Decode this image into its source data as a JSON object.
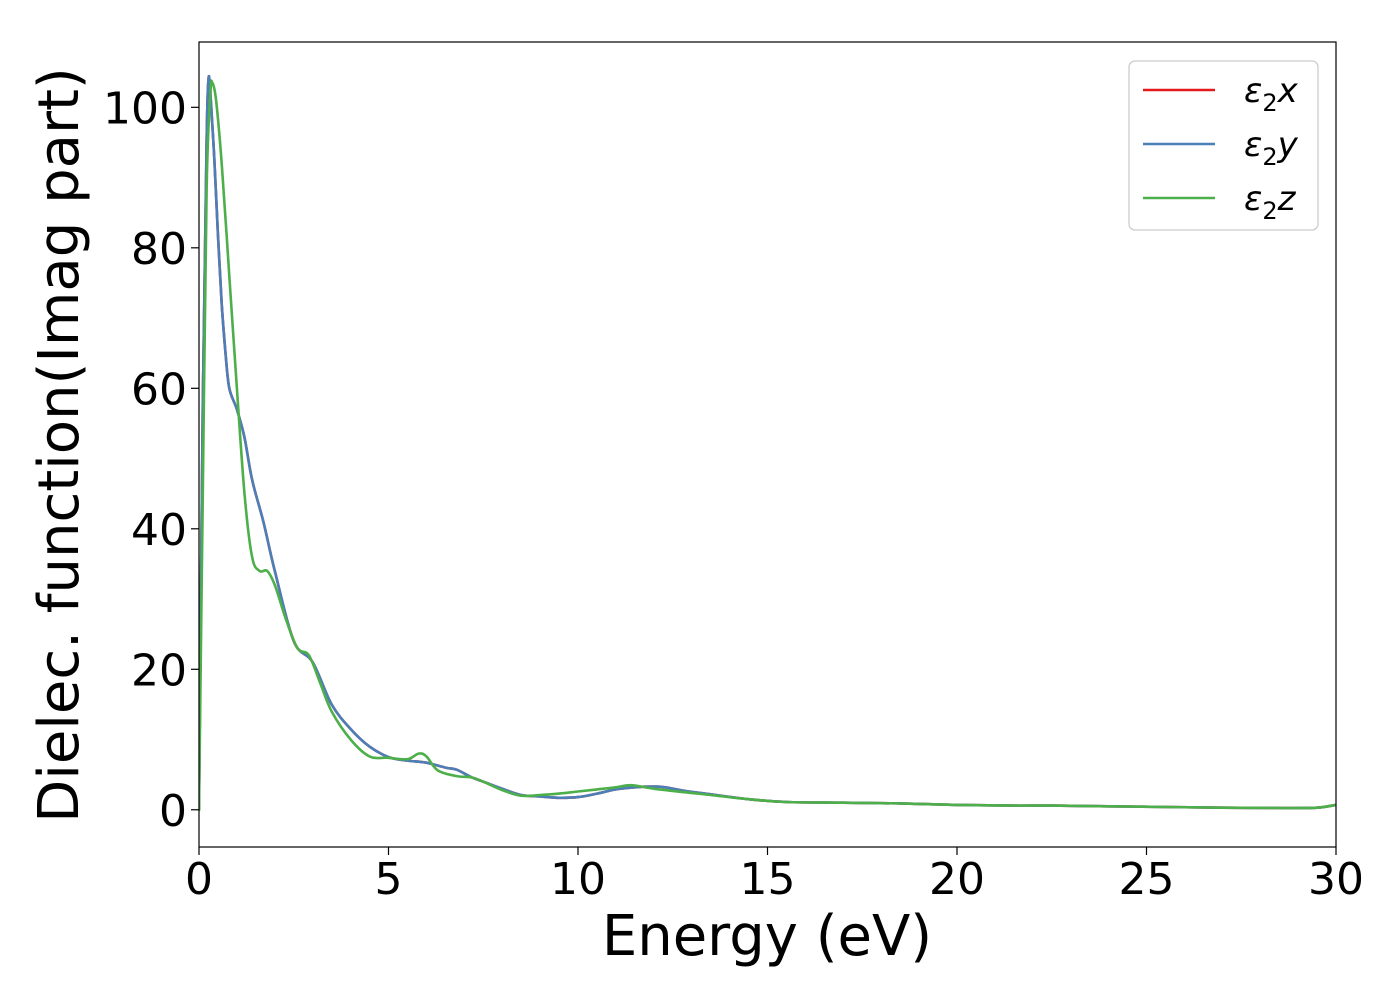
{
  "chart_data": {
    "type": "line",
    "title": "",
    "xlabel": "Energy (eV)",
    "ylabel": "Dielec. function(Imag part)",
    "xlim": [
      0,
      30
    ],
    "ylim": [
      -5.3,
      109.3
    ],
    "xticks": [
      0,
      5,
      10,
      15,
      20,
      25,
      30
    ],
    "yticks": [
      0,
      20,
      40,
      60,
      80,
      100
    ],
    "grid": false,
    "legend_position": "top-right",
    "series": [
      {
        "name": "ε₂x",
        "legend_main": "ε",
        "legend_sub": "2",
        "legend_suffix": "x",
        "color": "#e41a1c",
        "x": [
          0,
          0.1,
          0.2,
          0.25,
          0.3,
          0.4,
          0.5,
          0.6,
          0.7,
          0.8,
          1.0,
          1.2,
          1.4,
          1.7,
          2.0,
          2.5,
          3.0,
          3.5,
          4.0,
          4.5,
          5.0,
          5.5,
          6.0,
          6.5,
          6.8,
          7.2,
          7.5,
          8.0,
          8.5,
          9.0,
          9.5,
          10.0,
          10.5,
          11.0,
          11.5,
          12.0,
          12.3,
          12.8,
          13.5,
          14.5,
          15.5,
          17.0,
          18.5,
          20.0,
          21.5,
          22.5,
          24.0,
          25.5,
          27.0,
          28.5,
          29.5,
          30.0
        ],
        "y": [
          0,
          58,
          95,
          104,
          102,
          93,
          82,
          72,
          65,
          60,
          57,
          53,
          47,
          41,
          34,
          24,
          21,
          15,
          11.5,
          9,
          7.5,
          7,
          6.7,
          6,
          5.7,
          4.6,
          4,
          3,
          2.1,
          1.9,
          1.7,
          1.8,
          2.3,
          2.9,
          3.2,
          3.3,
          3.2,
          2.7,
          2.2,
          1.5,
          1.1,
          1.0,
          0.9,
          0.7,
          0.6,
          0.6,
          0.5,
          0.4,
          0.3,
          0.25,
          0.3,
          0.7
        ]
      },
      {
        "name": "ε₂y",
        "legend_main": "ε",
        "legend_sub": "2",
        "legend_suffix": "y",
        "color": "#4a7fb8",
        "x": [
          0,
          0.1,
          0.2,
          0.25,
          0.3,
          0.4,
          0.5,
          0.6,
          0.7,
          0.8,
          1.0,
          1.2,
          1.4,
          1.7,
          2.0,
          2.5,
          3.0,
          3.5,
          4.0,
          4.5,
          5.0,
          5.5,
          6.0,
          6.5,
          6.8,
          7.2,
          7.5,
          8.0,
          8.5,
          9.0,
          9.5,
          10.0,
          10.5,
          11.0,
          11.5,
          12.0,
          12.3,
          12.8,
          13.5,
          14.5,
          15.5,
          17.0,
          18.5,
          20.0,
          21.5,
          22.5,
          24.0,
          25.5,
          27.0,
          28.5,
          29.5,
          30.0
        ],
        "y": [
          0,
          58,
          95,
          104,
          102,
          93,
          82,
          72,
          65,
          60,
          57,
          53,
          47,
          41,
          34,
          24,
          21,
          15,
          11.5,
          9,
          7.5,
          7,
          6.7,
          6,
          5.7,
          4.6,
          4,
          3,
          2.1,
          1.9,
          1.7,
          1.8,
          2.3,
          2.9,
          3.2,
          3.3,
          3.2,
          2.7,
          2.2,
          1.5,
          1.1,
          1.0,
          0.9,
          0.7,
          0.6,
          0.6,
          0.5,
          0.4,
          0.3,
          0.25,
          0.3,
          0.7
        ]
      },
      {
        "name": "ε₂z",
        "legend_main": "ε",
        "legend_sub": "2",
        "legend_suffix": "z",
        "color": "#4daf4a",
        "x": [
          0,
          0.1,
          0.2,
          0.3,
          0.35,
          0.45,
          0.6,
          0.8,
          1.0,
          1.2,
          1.4,
          1.6,
          1.8,
          2.0,
          2.3,
          2.6,
          2.9,
          3.2,
          3.5,
          4.0,
          4.5,
          5.0,
          5.5,
          5.8,
          6.0,
          6.3,
          6.8,
          7.2,
          7.5,
          8.0,
          8.5,
          9.0,
          9.5,
          10.0,
          10.5,
          11.0,
          11.4,
          12.0,
          12.8,
          13.5,
          14.5,
          15.5,
          17.0,
          18.5,
          20.0,
          21.5,
          22.5,
          24.0,
          25.5,
          27.0,
          28.5,
          29.5,
          30.0
        ],
        "y": [
          0,
          45,
          88,
          102,
          103.5,
          101,
          92,
          76,
          60,
          45,
          36,
          34,
          34,
          32,
          27,
          23,
          22,
          18,
          14,
          10,
          7.6,
          7.4,
          7.2,
          8.0,
          7.6,
          5.6,
          4.8,
          4.6,
          4.0,
          2.8,
          2.0,
          2.1,
          2.3,
          2.6,
          2.9,
          3.2,
          3.5,
          3.0,
          2.5,
          2.1,
          1.5,
          1.1,
          1.0,
          0.9,
          0.7,
          0.6,
          0.6,
          0.5,
          0.4,
          0.3,
          0.25,
          0.3,
          0.7
        ]
      }
    ]
  }
}
